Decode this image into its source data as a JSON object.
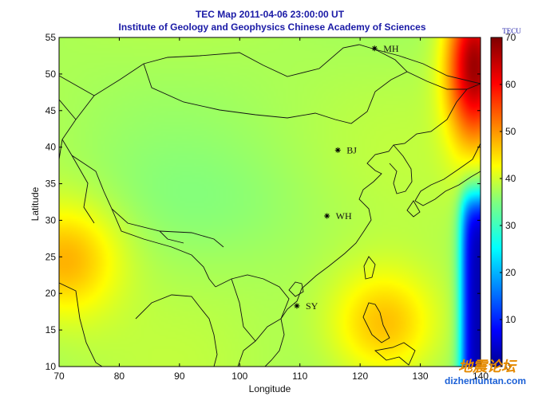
{
  "chart_data": {
    "type": "heatmap",
    "title": "TEC Map 2011-04-06 23:00:00 UT",
    "subtitle": "Institute of Geology and Geophysics Chinese Academy of Sciences",
    "xlabel": "Longitude",
    "ylabel": "Latitude",
    "xlim": [
      70,
      140
    ],
    "ylim": [
      10,
      55
    ],
    "x_ticks": [
      70,
      80,
      90,
      100,
      110,
      120,
      130,
      140
    ],
    "y_ticks": [
      10,
      15,
      20,
      25,
      30,
      35,
      40,
      45,
      50,
      55
    ],
    "colorbar": {
      "unit": "TECU",
      "range": [
        0,
        70
      ],
      "ticks": [
        0,
        10,
        20,
        30,
        40,
        50,
        60,
        70
      ],
      "colormap": "jet"
    },
    "stations": [
      {
        "name": "MH",
        "lon": 122.4,
        "lat": 53.5
      },
      {
        "name": "BJ",
        "lon": 116.3,
        "lat": 39.6
      },
      {
        "name": "WH",
        "lon": 114.5,
        "lat": 30.6
      },
      {
        "name": "SY",
        "lon": 109.5,
        "lat": 18.3
      }
    ],
    "field": {
      "base_tecu": 38,
      "features": [
        {
          "kind": "peak",
          "lon": 71,
          "lat": 24.5,
          "value": 49
        },
        {
          "kind": "peak",
          "lon": 124,
          "lat": 16,
          "value": 48
        },
        {
          "kind": "peak",
          "lon": 139,
          "lat": 51,
          "value": 68
        },
        {
          "kind": "low_edge",
          "lon_range": [
            135,
            140
          ],
          "lat_range": [
            10,
            33
          ],
          "value": 3
        }
      ]
    }
  },
  "watermark": {
    "line1": "地震论坛",
    "line2": "dizhenluntan.com"
  },
  "colors": {
    "title": "#1a1aa6",
    "coast": "#111111",
    "watermark_cn": "#e58a00",
    "watermark_url": "#1a5fd6"
  }
}
